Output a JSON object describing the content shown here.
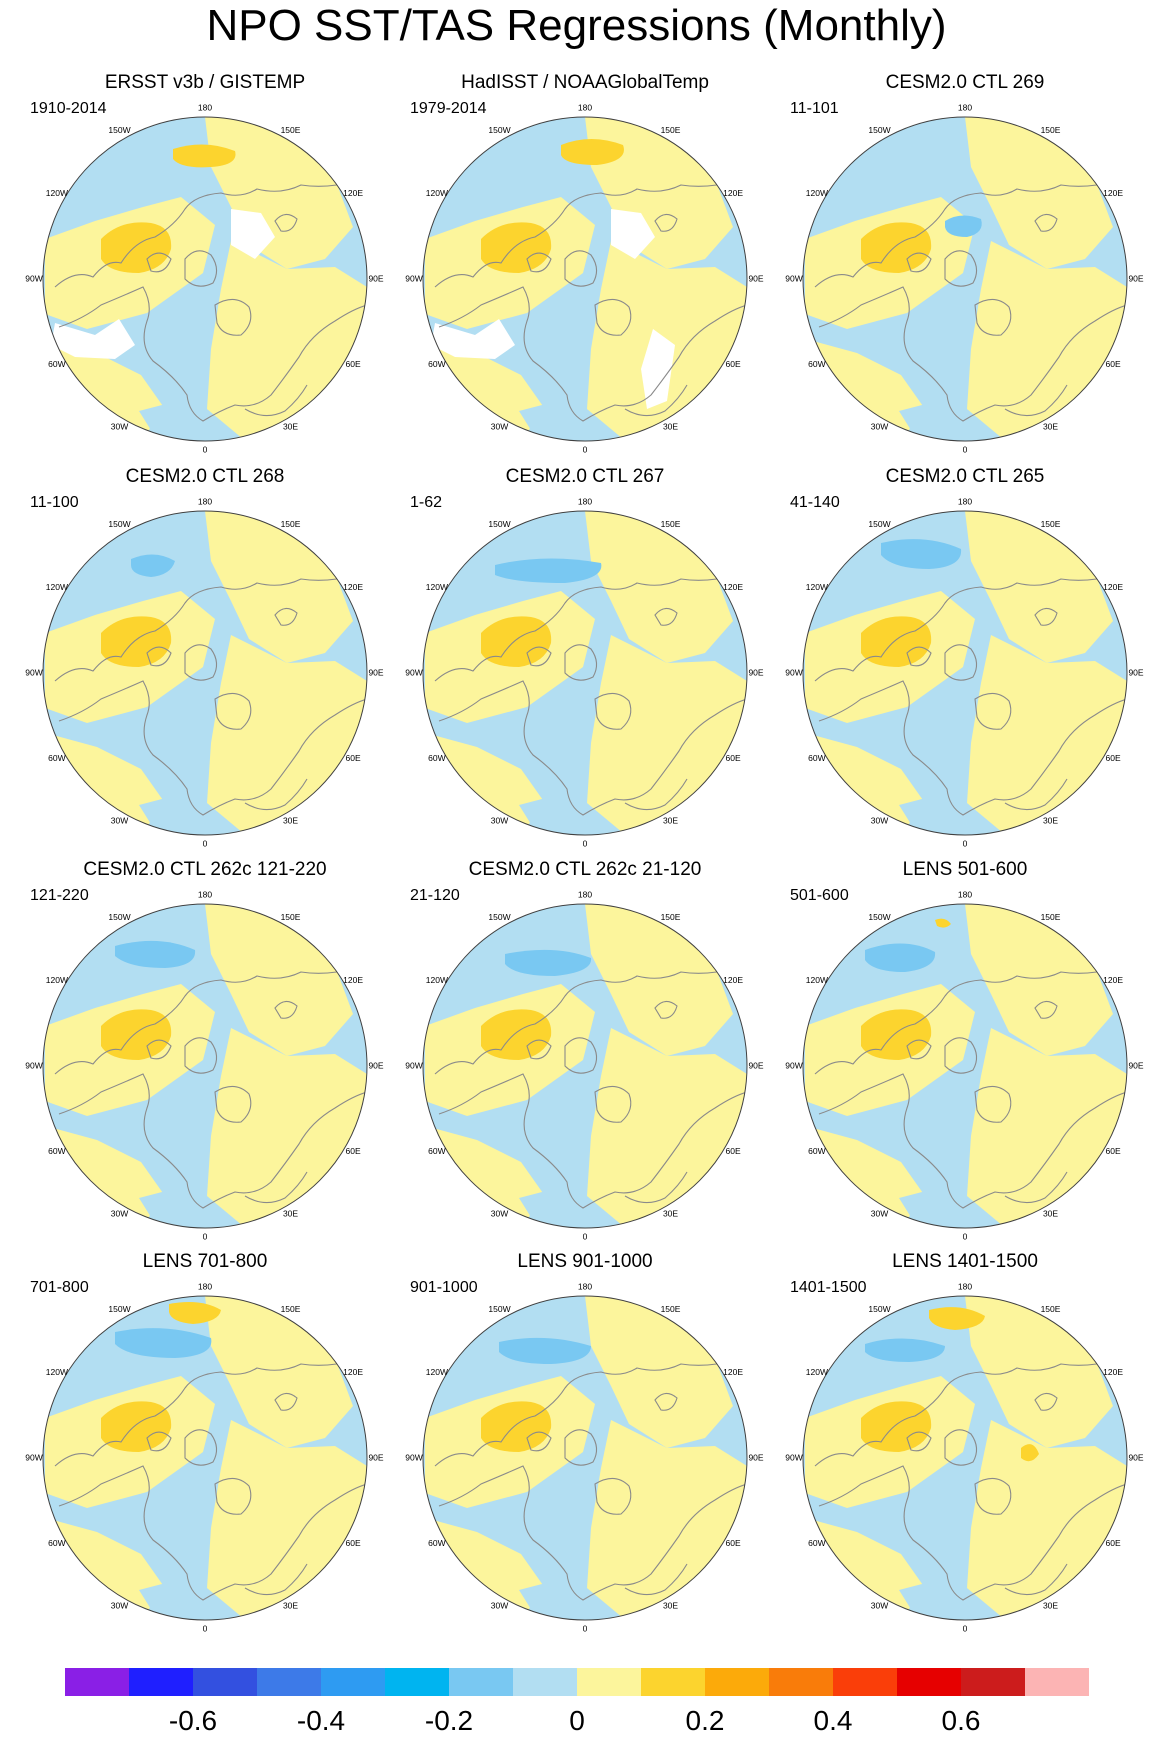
{
  "title": "NPO SST/TAS Regressions (Monthly)",
  "colors": {
    "land": "#ffffff",
    "coast": "#8a8a8a",
    "rim": "#404040",
    "levels": [
      "#8a1fe6",
      "#1f1fff",
      "#3350e0",
      "#3d7ae8",
      "#2e9bf2",
      "#00b4f0",
      "#79c8f2",
      "#b2def2",
      "#fcf59c",
      "#fcd42e",
      "#fcaa0a",
      "#f97c0a",
      "#fa3e09",
      "#e60000",
      "#cc1c1c",
      "#fcb4b4"
    ]
  },
  "lon_labels": [
    "180",
    "150E",
    "120E",
    "90E",
    "60E",
    "30E",
    "0",
    "30W",
    "60W",
    "90W",
    "120W",
    "150W"
  ],
  "panels": [
    {
      "title": "ERSST v3b / GISTEMP",
      "years": "1910-2014"
    },
    {
      "title": "HadISST / NOAAGlobalTemp",
      "years": "1979-2014"
    },
    {
      "title": "CESM2.0 CTL 269",
      "years": "11-101"
    },
    {
      "title": "CESM2.0 CTL 268",
      "years": "11-100"
    },
    {
      "title": "CESM2.0 CTL 267",
      "years": "1-62"
    },
    {
      "title": "CESM2.0 CTL 265",
      "years": "41-140"
    },
    {
      "title": "CESM2.0 CTL 262c 121-220",
      "years": "121-220"
    },
    {
      "title": "CESM2.0 CTL 262c 21-120",
      "years": "21-120"
    },
    {
      "title": "LENS 501-600",
      "years": "501-600"
    },
    {
      "title": "LENS 701-800",
      "years": "701-800"
    },
    {
      "title": "LENS 901-1000",
      "years": "901-1000"
    },
    {
      "title": "LENS 1401-1500",
      "years": "1401-1500"
    }
  ],
  "colorbar": {
    "tick_labels": [
      "-0.6",
      "-0.4",
      "-0.2",
      "0",
      "0.2",
      "0.4",
      "0.6"
    ]
  }
}
